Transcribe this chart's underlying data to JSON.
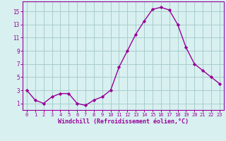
{
  "x": [
    0,
    1,
    2,
    3,
    4,
    5,
    6,
    7,
    8,
    9,
    10,
    11,
    12,
    13,
    14,
    15,
    16,
    17,
    18,
    19,
    20,
    21,
    22,
    23
  ],
  "y": [
    3.0,
    1.5,
    1.0,
    2.0,
    2.5,
    2.5,
    1.0,
    0.7,
    1.5,
    2.0,
    3.0,
    6.5,
    9.0,
    11.5,
    13.5,
    15.3,
    15.6,
    15.2,
    13.0,
    9.5,
    7.0,
    6.0,
    5.0,
    4.0
  ],
  "line_color": "#990099",
  "marker_color": "#990099",
  "bg_color": "#d8f0f0",
  "grid_color": "#aacccc",
  "xlabel": "Windchill (Refroidissement éolien,°C)",
  "xlabel_color": "#990099",
  "tick_color": "#990099",
  "ylabel_ticks": [
    1,
    3,
    5,
    7,
    9,
    11,
    13,
    15
  ],
  "xlim": [
    -0.5,
    23.5
  ],
  "ylim": [
    0,
    16.5
  ],
  "figsize": [
    3.2,
    2.0
  ],
  "dpi": 100
}
